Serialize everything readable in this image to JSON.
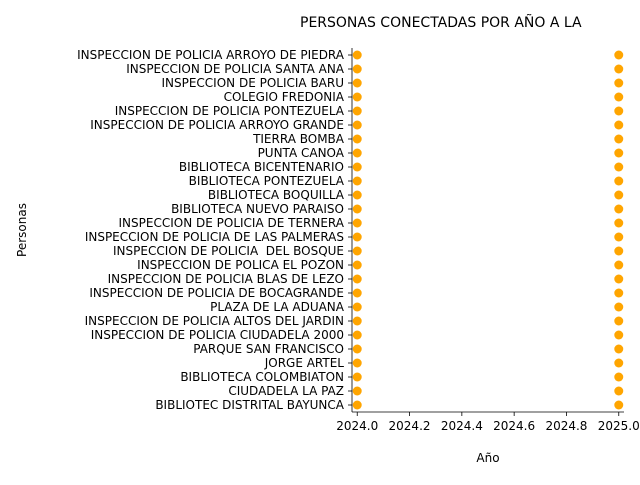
{
  "chart_data": {
    "type": "scatter",
    "title": "PERSONAS CONECTADAS POR AÑO A LA",
    "xlabel": "Año",
    "ylabel": "Personas",
    "xlim": [
      2023.98,
      2025.02
    ],
    "xticks": [
      2024.0,
      2024.2,
      2024.4,
      2024.6,
      2024.8,
      2025.0
    ],
    "xtick_labels": [
      "2024.0",
      "2024.2",
      "2024.4",
      "2024.6",
      "2024.8",
      "2025.0"
    ],
    "grid": false,
    "marker_color": "#FFA500",
    "categories": [
      "INSPECCION DE POLICIA ARROYO DE PIEDRA",
      "INSPECCION DE POLICIA SANTA ANA",
      "INSPECCION DE POLICIA BARU",
      "COLEGIO FREDONIA",
      "INSPECCION DE POLICIA PONTEZUELA",
      "INSPECCION DE POLICIA ARROYO GRANDE",
      "TIERRA BOMBA",
      "PUNTA CANOA",
      "BIBLIOTECA BICENTENARIO",
      "BIBLIOTECA PONTEZUELA",
      "BIBLIOTECA BOQUILLA",
      "BIBLIOTECA NUEVO PARAISO",
      "INSPECCION DE POLICIA DE TERNERA",
      "INSPECCION DE POLICIA DE LAS PALMERAS",
      "INSPECCION DE POLICIA  DEL BOSQUE",
      "INSPECCION DE POLICA EL POZON",
      "INSPECCION DE POLICIA BLAS DE LEZO",
      "INSPECCION DE POLICIA DE BOCAGRANDE",
      "PLAZA DE LA ADUANA",
      "INSPECCION DE POLICIA ALTOS DEL JARDIN",
      "INSPECCION DE POLICIA CIUDADELA 2000",
      "PARQUE SAN FRANCISCO",
      "JORGE ARTEL",
      "BIBLIOTECA COLOMBIATON",
      "CIUDADELA LA PAZ",
      "BIBLIOTEC DISTRITAL BAYUNCA"
    ],
    "x": [
      2024,
      2025
    ]
  }
}
